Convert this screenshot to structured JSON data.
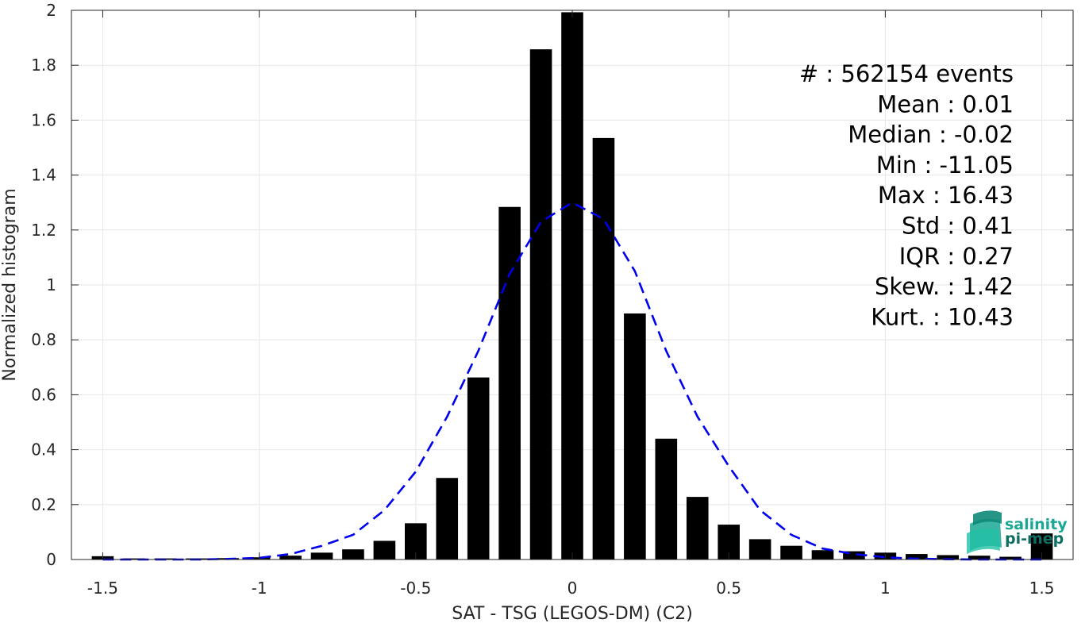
{
  "chart_data": {
    "type": "bar",
    "xlabel": "SAT - TSG (LEGOS-DM) (C2)",
    "ylabel": "Normalized histogram",
    "xlim": [
      -1.6,
      1.6
    ],
    "ylim": [
      0,
      2
    ],
    "xticks": [
      -1.5,
      -1,
      -0.5,
      0,
      0.5,
      1,
      1.5
    ],
    "xtick_labels": [
      "-1.5",
      "-1",
      "-0.5",
      "0",
      "0.5",
      "1",
      "1.5"
    ],
    "yticks": [
      0,
      0.2,
      0.4,
      0.6,
      0.8,
      1,
      1.2,
      1.4,
      1.6,
      1.8,
      2
    ],
    "ytick_labels": [
      "0",
      "0.2",
      "0.4",
      "0.6",
      "0.8",
      "1",
      "1.2",
      "1.4",
      "1.6",
      "1.8",
      "2"
    ],
    "grid": true,
    "bar_width": 0.07,
    "bar_color": "#000000",
    "x": [
      -1.5,
      -1.4,
      -1.3,
      -1.2,
      -1.1,
      -1.0,
      -0.9,
      -0.8,
      -0.7,
      -0.6,
      -0.5,
      -0.4,
      -0.3,
      -0.2,
      -0.1,
      0.0,
      0.1,
      0.2,
      0.3,
      0.4,
      0.5,
      0.6,
      0.7,
      0.8,
      0.9,
      1.0,
      1.1,
      1.2,
      1.3,
      1.4,
      1.5
    ],
    "values": [
      0.012,
      0.004,
      0.004,
      0.004,
      0.005,
      0.008,
      0.014,
      0.025,
      0.037,
      0.068,
      0.132,
      0.297,
      0.663,
      1.284,
      1.858,
      1.993,
      1.535,
      0.896,
      0.44,
      0.228,
      0.127,
      0.074,
      0.05,
      0.034,
      0.03,
      0.025,
      0.02,
      0.016,
      0.014,
      0.01,
      0.095
    ],
    "fit_curve": {
      "style": "dashed",
      "color": "#0000ee",
      "x": [
        -1.5,
        -1.4,
        -1.3,
        -1.2,
        -1.1,
        -1.0,
        -0.9,
        -0.8,
        -0.7,
        -0.6,
        -0.5,
        -0.4,
        -0.3,
        -0.2,
        -0.1,
        0.0,
        0.1,
        0.2,
        0.3,
        0.4,
        0.5,
        0.6,
        0.7,
        0.8,
        0.9,
        1.0,
        1.1,
        1.2,
        1.3,
        1.4,
        1.5
      ],
      "y": [
        0.0,
        0.0,
        0.0,
        0.0,
        0.002,
        0.006,
        0.02,
        0.05,
        0.09,
        0.18,
        0.32,
        0.52,
        0.76,
        1.04,
        1.23,
        1.3,
        1.24,
        1.05,
        0.76,
        0.52,
        0.34,
        0.18,
        0.09,
        0.04,
        0.02,
        0.008,
        0.003,
        0.001,
        0.0,
        0.0,
        0.0
      ]
    },
    "annotations": [
      "#  : 562154 events",
      "Mean : 0.01",
      "Median : -0.02",
      "Min : -11.05",
      "Max : 16.43",
      "Std : 0.41",
      "IQR : 0.27",
      "Skew. : 1.42",
      "Kurt. : 10.43"
    ]
  },
  "logo": {
    "line1": "salinity",
    "line2": "pi-mep",
    "color_primary": "#1aa894",
    "color_secondary": "#0e6e63"
  },
  "colors": {
    "axis": "#262626",
    "grid": "#e6e6e6",
    "fit": "#0000ee",
    "bars": "#000000"
  }
}
